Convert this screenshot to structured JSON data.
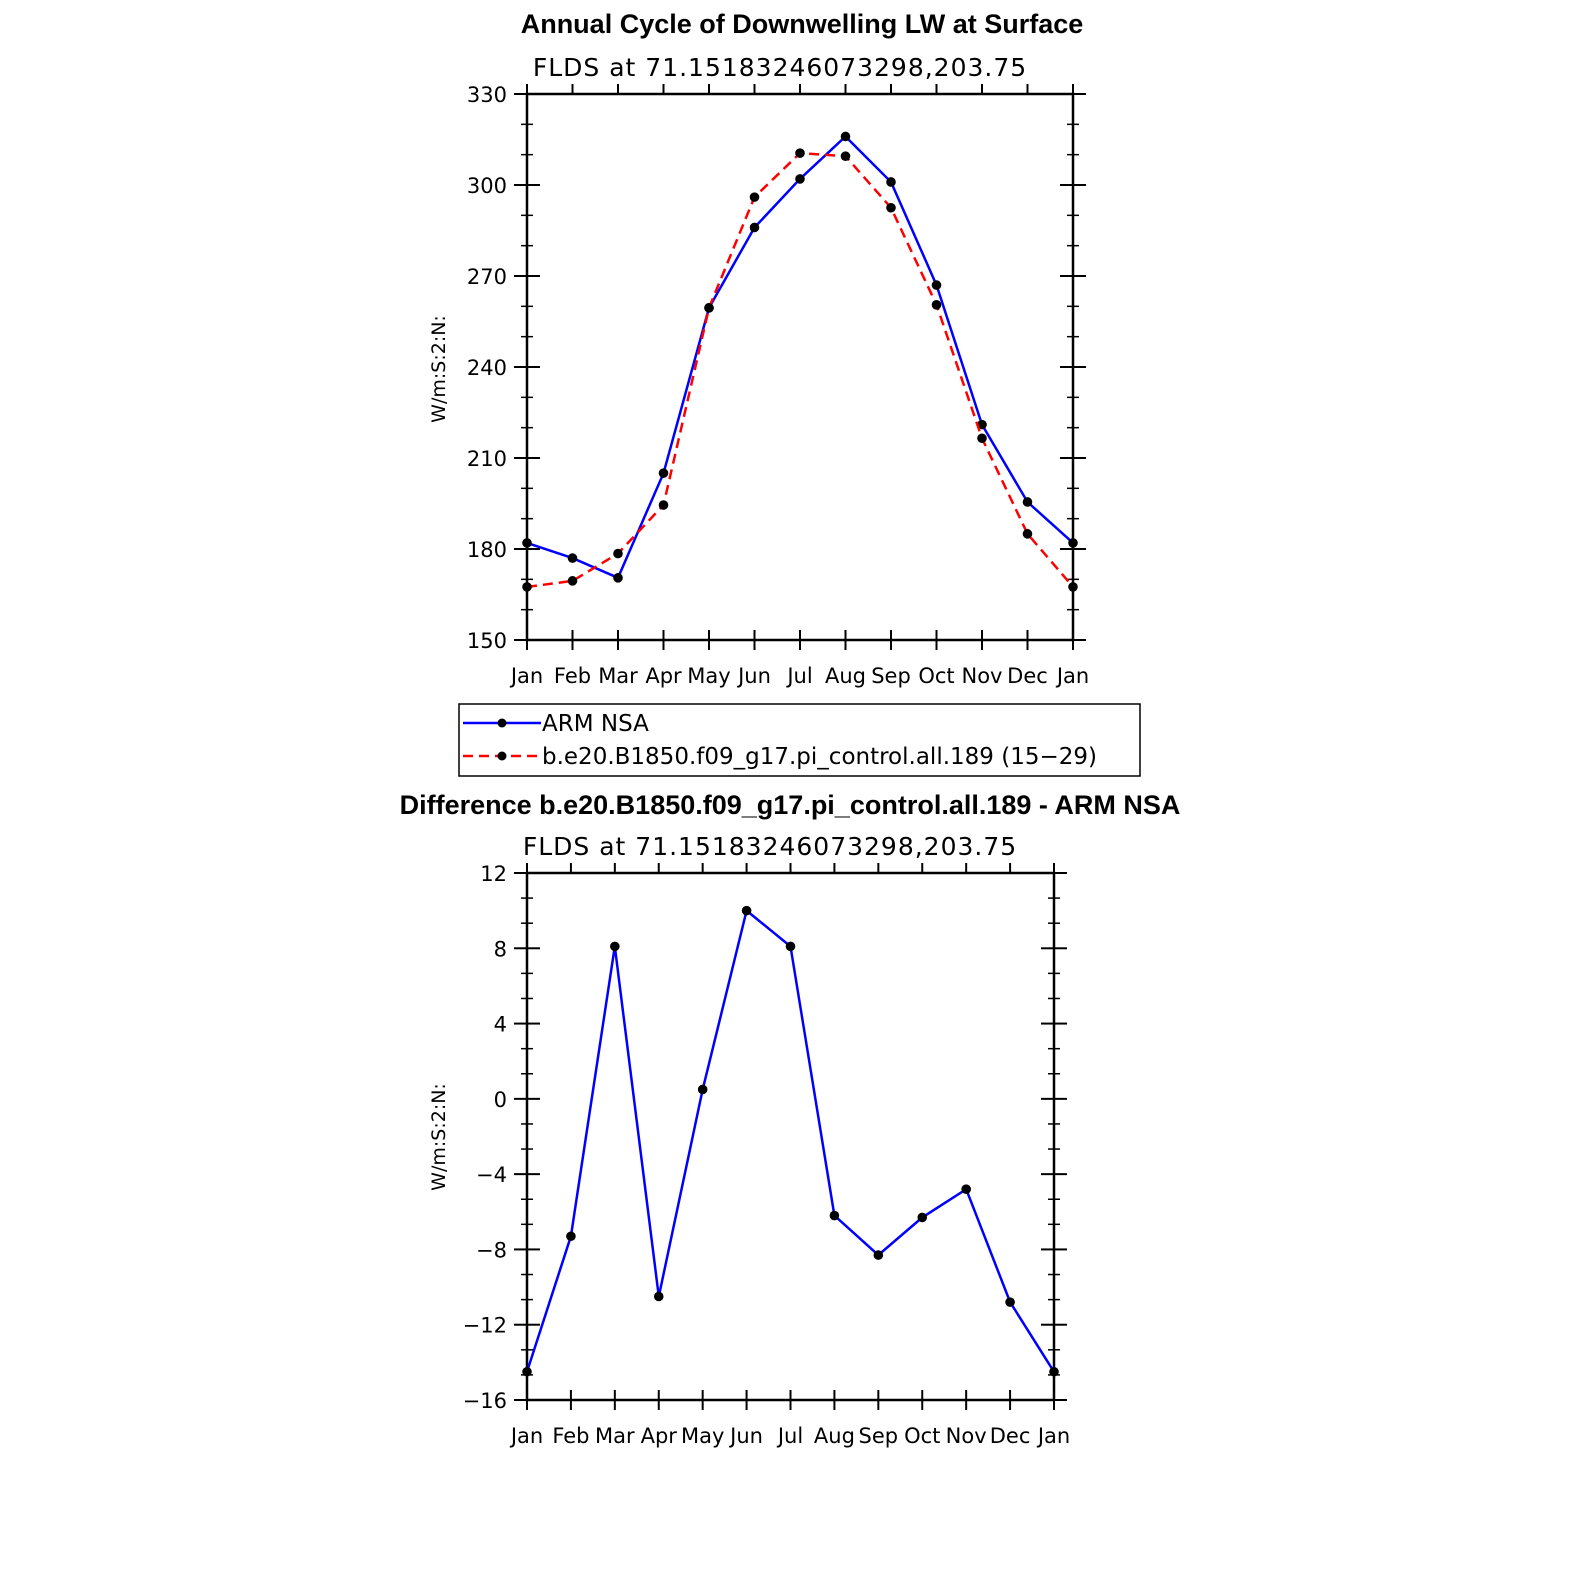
{
  "chart_data": [
    {
      "type": "line",
      "title": "Annual Cycle of Downwelling LW at Surface",
      "subtitle": "FLDS at 71.15183246073298,203.75",
      "ylabel": "W/m:S:2:N:",
      "xlabel": "",
      "categories": [
        "Jan",
        "Feb",
        "Mar",
        "Apr",
        "May",
        "Jun",
        "Jul",
        "Aug",
        "Sep",
        "Oct",
        "Nov",
        "Dec",
        "Jan"
      ],
      "ylim": [
        150,
        330
      ],
      "yticks": [
        150,
        180,
        210,
        240,
        270,
        300,
        330
      ],
      "series": [
        {
          "name": "ARM NSA",
          "color": "#0000ff",
          "dash": "solid",
          "values": [
            182,
            177,
            170.5,
            205,
            259.5,
            286,
            302,
            316,
            301,
            267,
            221,
            195.5,
            182
          ]
        },
        {
          "name": "b.e20.B1850.f09_g17.pi_control.all.189 (15−29)",
          "color": "#ff0000",
          "dash": "dashed",
          "values": [
            167.5,
            169.5,
            178.5,
            194.5,
            259.5,
            296,
            310.5,
            309.5,
            292.5,
            260.5,
            216.5,
            185,
            167.5
          ]
        }
      ],
      "grid": false,
      "legend_position": "bottom"
    },
    {
      "type": "line",
      "title": "Difference b.e20.B1850.f09_g17.pi_control.all.189 - ARM NSA",
      "subtitle": "FLDS at 71.15183246073298,203.75",
      "ylabel": "W/m:S:2:N:",
      "xlabel": "",
      "categories": [
        "Jan",
        "Feb",
        "Mar",
        "Apr",
        "May",
        "Jun",
        "Jul",
        "Aug",
        "Sep",
        "Oct",
        "Nov",
        "Dec",
        "Jan"
      ],
      "ylim": [
        -16,
        12
      ],
      "yticks": [
        -16,
        -12,
        -8,
        -4,
        0,
        4,
        8,
        12
      ],
      "ytick_labels": [
        "−16",
        "−12",
        "−8",
        "−4",
        "0",
        "4",
        "8",
        "12"
      ],
      "series": [
        {
          "color": "#0000ff",
          "dash": "solid",
          "values": [
            -14.5,
            -7.3,
            8.1,
            -10.5,
            0.5,
            10,
            8.1,
            -6.2,
            -8.3,
            -6.3,
            -4.8,
            -10.8,
            -14.5
          ]
        }
      ],
      "grid": false
    }
  ]
}
